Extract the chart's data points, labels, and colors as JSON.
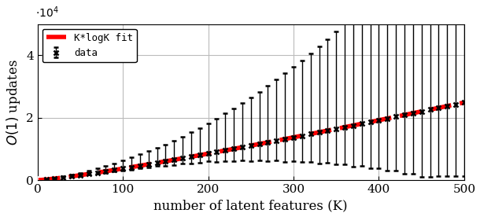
{
  "title": "",
  "xlabel": "number of latent features (K)",
  "ylabel": "$O(1)$ updates",
  "xlim": [
    0,
    500
  ],
  "ylim": [
    0,
    50000
  ],
  "ytick_scale": 10000,
  "fit_color": "#ff0000",
  "fit_linewidth": 4.0,
  "data_color": "#000000",
  "data_marker": "x",
  "data_markersize": 5,
  "error_linewidth": 1.0,
  "grid_color": "#bbbbbb",
  "background_color": "#ffffff",
  "legend_fit_label": "K*logK fit",
  "legend_data_label": "data",
  "K_fit_start": 1,
  "K_fit_end": 500,
  "fit_scale": 8.0,
  "K_data_points": [
    10,
    20,
    30,
    40,
    50,
    60,
    70,
    80,
    90,
    100,
    110,
    120,
    130,
    140,
    150,
    160,
    170,
    180,
    190,
    200,
    210,
    220,
    230,
    240,
    250,
    260,
    270,
    280,
    290,
    300,
    310,
    320,
    330,
    340,
    350,
    360,
    370,
    380,
    390,
    400,
    410,
    420,
    430,
    440,
    450,
    460,
    470,
    480,
    490,
    500
  ],
  "data_scale": 8.0,
  "error_upper_factors": [
    0.3,
    0.35,
    0.4,
    0.45,
    0.5,
    0.55,
    0.55,
    0.6,
    0.65,
    0.7,
    0.75,
    0.8,
    0.85,
    0.85,
    0.9,
    0.95,
    1.0,
    1.05,
    1.1,
    1.15,
    1.2,
    1.25,
    1.3,
    1.35,
    1.4,
    1.45,
    1.5,
    1.55,
    1.6,
    1.65,
    1.7,
    1.75,
    1.8,
    1.85,
    1.9,
    1.95,
    2.0,
    2.05,
    2.1,
    2.15,
    2.2,
    2.25,
    2.3,
    2.35,
    2.4,
    2.45,
    2.5,
    2.55,
    2.6,
    2.65
  ],
  "error_lower_factors": [
    0.15,
    0.15,
    0.15,
    0.15,
    0.15,
    0.15,
    0.15,
    0.15,
    0.15,
    0.15,
    0.2,
    0.2,
    0.2,
    0.2,
    0.25,
    0.25,
    0.25,
    0.3,
    0.3,
    0.3,
    0.35,
    0.35,
    0.4,
    0.4,
    0.45,
    0.45,
    0.5,
    0.5,
    0.55,
    0.55,
    0.6,
    0.6,
    0.65,
    0.65,
    0.7,
    0.7,
    0.75,
    0.75,
    0.8,
    0.8,
    0.85,
    0.85,
    0.9,
    0.9,
    0.95,
    0.95,
    1.0,
    1.0,
    1.05,
    1.05
  ]
}
